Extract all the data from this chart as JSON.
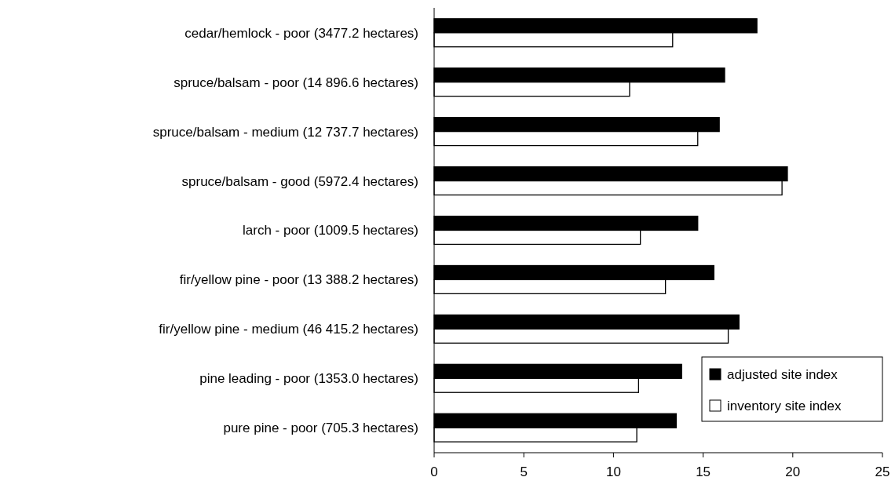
{
  "chart_data": {
    "type": "bar",
    "orientation": "horizontal",
    "categories": [
      "cedar/hemlock - poor (3477.2 hectares)",
      "spruce/balsam - poor (14 896.6 hectares)",
      "spruce/balsam - medium (12 737.7 hectares)",
      "spruce/balsam - good (5972.4 hectares)",
      "larch - poor (1009.5 hectares)",
      "fir/yellow pine - poor (13 388.2 hectares)",
      "fir/yellow pine - medium (46 415.2 hectares)",
      "pine leading - poor (1353.0 hectares)",
      "pure pine - poor (705.3 hectares)"
    ],
    "series": [
      {
        "name": "adjusted site index",
        "color": "#000000",
        "values": [
          18.0,
          16.2,
          15.9,
          19.7,
          14.7,
          15.6,
          17.0,
          13.8,
          13.5
        ]
      },
      {
        "name": "inventory site index",
        "color": "#ffffff",
        "values": [
          13.3,
          10.9,
          14.7,
          19.4,
          11.5,
          12.9,
          16.4,
          11.4,
          11.3
        ]
      }
    ],
    "xlim": [
      0,
      25
    ],
    "xticks": [
      0,
      5,
      10,
      15,
      20,
      25
    ],
    "grid": false,
    "legend": "bottom right"
  }
}
